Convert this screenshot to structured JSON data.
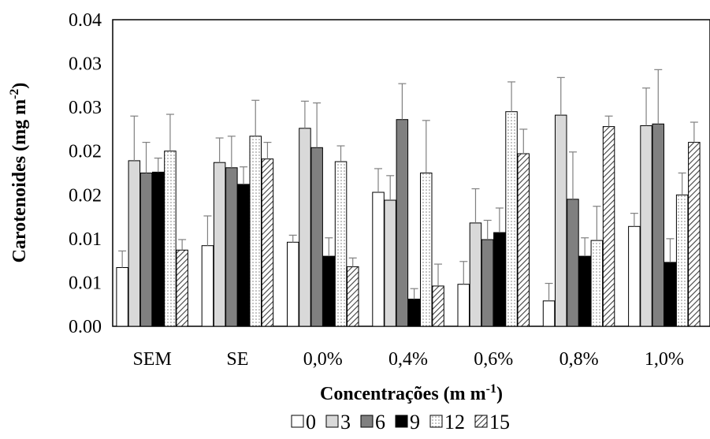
{
  "chart_data": {
    "type": "bar",
    "xlabel": "Concentrações (m m",
    "xlabel_sup": "-1",
    "xlabel_end": ")",
    "ylabel": "Carotenoides (mg m",
    "ylabel_sup": "-2",
    "ylabel_end": ")",
    "y_tick_labels": [
      "0.00",
      "0.01",
      "0.01",
      "0.02",
      "0.02",
      "0.03",
      "0.03",
      "0.04"
    ],
    "ylim": [
      0,
      0.035
    ],
    "categories": [
      "SEM",
      "SE",
      "0,0%",
      "0,4%",
      "0,6%",
      "0,8%",
      "1,0%"
    ],
    "series": [
      {
        "name": "0",
        "style": "white",
        "values": [
          0.0067,
          0.0092,
          0.0096,
          0.0153,
          0.0048,
          0.0029,
          0.0114
        ],
        "errors": [
          0.0019,
          0.0034,
          0.0008,
          0.0027,
          0.0026,
          0.002,
          0.0015
        ]
      },
      {
        "name": "3",
        "style": "lightgray",
        "values": [
          0.0189,
          0.0187,
          0.0226,
          0.0144,
          0.0118,
          0.0241,
          0.0229
        ],
        "errors": [
          0.0051,
          0.0028,
          0.0031,
          0.0028,
          0.0039,
          0.0043,
          0.0043
        ]
      },
      {
        "name": "6",
        "style": "darkgray",
        "values": [
          0.0175,
          0.0181,
          0.0204,
          0.0236,
          0.0099,
          0.0145,
          0.0231
        ],
        "errors": [
          0.0035,
          0.0036,
          0.0051,
          0.0041,
          0.0022,
          0.0054,
          0.0062
        ]
      },
      {
        "name": "9",
        "style": "black",
        "values": [
          0.0176,
          0.0162,
          0.008,
          0.0031,
          0.0107,
          0.008,
          0.0073
        ],
        "errors": [
          0.0016,
          0.002,
          0.0021,
          0.0012,
          0.0028,
          0.0021,
          0.0027
        ]
      },
      {
        "name": "12",
        "style": "dotted",
        "values": [
          0.02,
          0.0217,
          0.0188,
          0.0175,
          0.0245,
          0.0098,
          0.015
        ],
        "errors": [
          0.0042,
          0.0041,
          0.0018,
          0.006,
          0.0034,
          0.0039,
          0.0025
        ]
      },
      {
        "name": "15",
        "style": "hatched",
        "values": [
          0.0087,
          0.0191,
          0.0068,
          0.0046,
          0.0197,
          0.0228,
          0.021
        ],
        "errors": [
          0.0012,
          0.0019,
          0.001,
          0.0025,
          0.0028,
          0.0012,
          0.0023
        ]
      }
    ],
    "legend_position": "bottom",
    "grid": false,
    "error_bars": true
  }
}
